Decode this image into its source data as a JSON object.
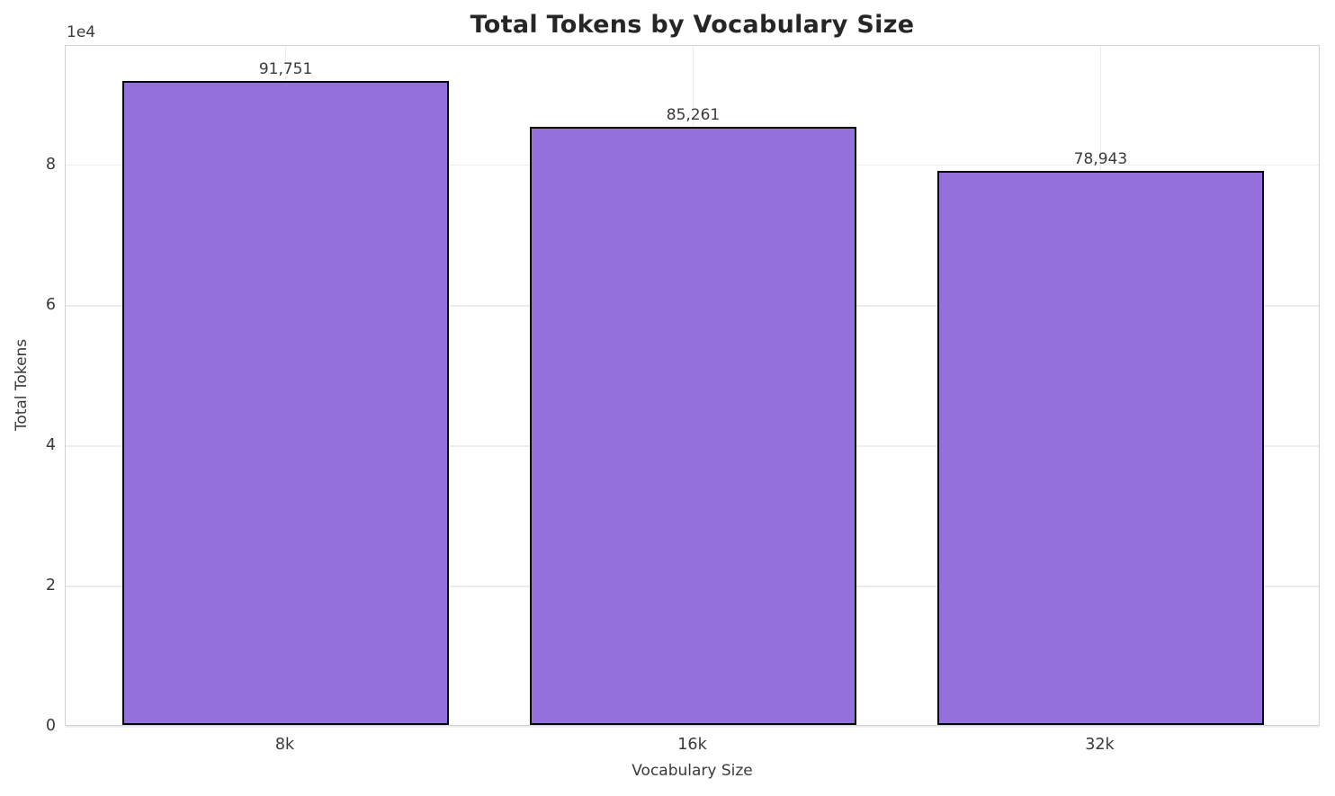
{
  "chart_data": {
    "type": "bar",
    "title": "Total Tokens by Vocabulary Size",
    "xlabel": "Vocabulary Size",
    "ylabel": "Total Tokens",
    "categories": [
      "8k",
      "16k",
      "32k"
    ],
    "values": [
      91751,
      85261,
      78943
    ],
    "value_labels": [
      "91,751",
      "85,261",
      "78,943"
    ],
    "ylim": [
      0,
      97000
    ],
    "yticks": [
      0,
      20000,
      40000,
      60000,
      80000
    ],
    "ytick_labels": [
      "0",
      "2",
      "4",
      "6",
      "8"
    ],
    "y_offset_label": "1e4",
    "grid": true,
    "legend": "none",
    "bar_color": "#9370DB",
    "bar_edge_color": "#000000"
  }
}
